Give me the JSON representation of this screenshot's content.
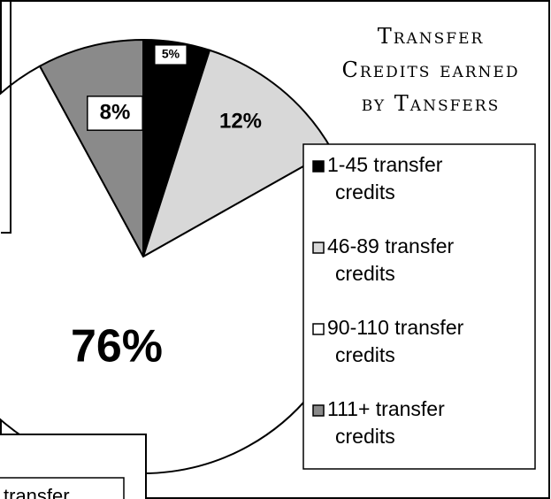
{
  "chart_data": {
    "type": "pie",
    "title": "Transfer Credits earned by Tansfers",
    "categories": [
      "1-45 transfer credits",
      "46-89 transfer credits",
      "90-110 transfer credits",
      "111+ transfer credits"
    ],
    "values": [
      5,
      12,
      76,
      8
    ],
    "value_labels": [
      "5%",
      "12%",
      "76%",
      "8%"
    ],
    "colors": [
      "#000000",
      "#d8d8d8",
      "#ffffff",
      "#8a8a8a"
    ],
    "fragment": "transfer"
  }
}
